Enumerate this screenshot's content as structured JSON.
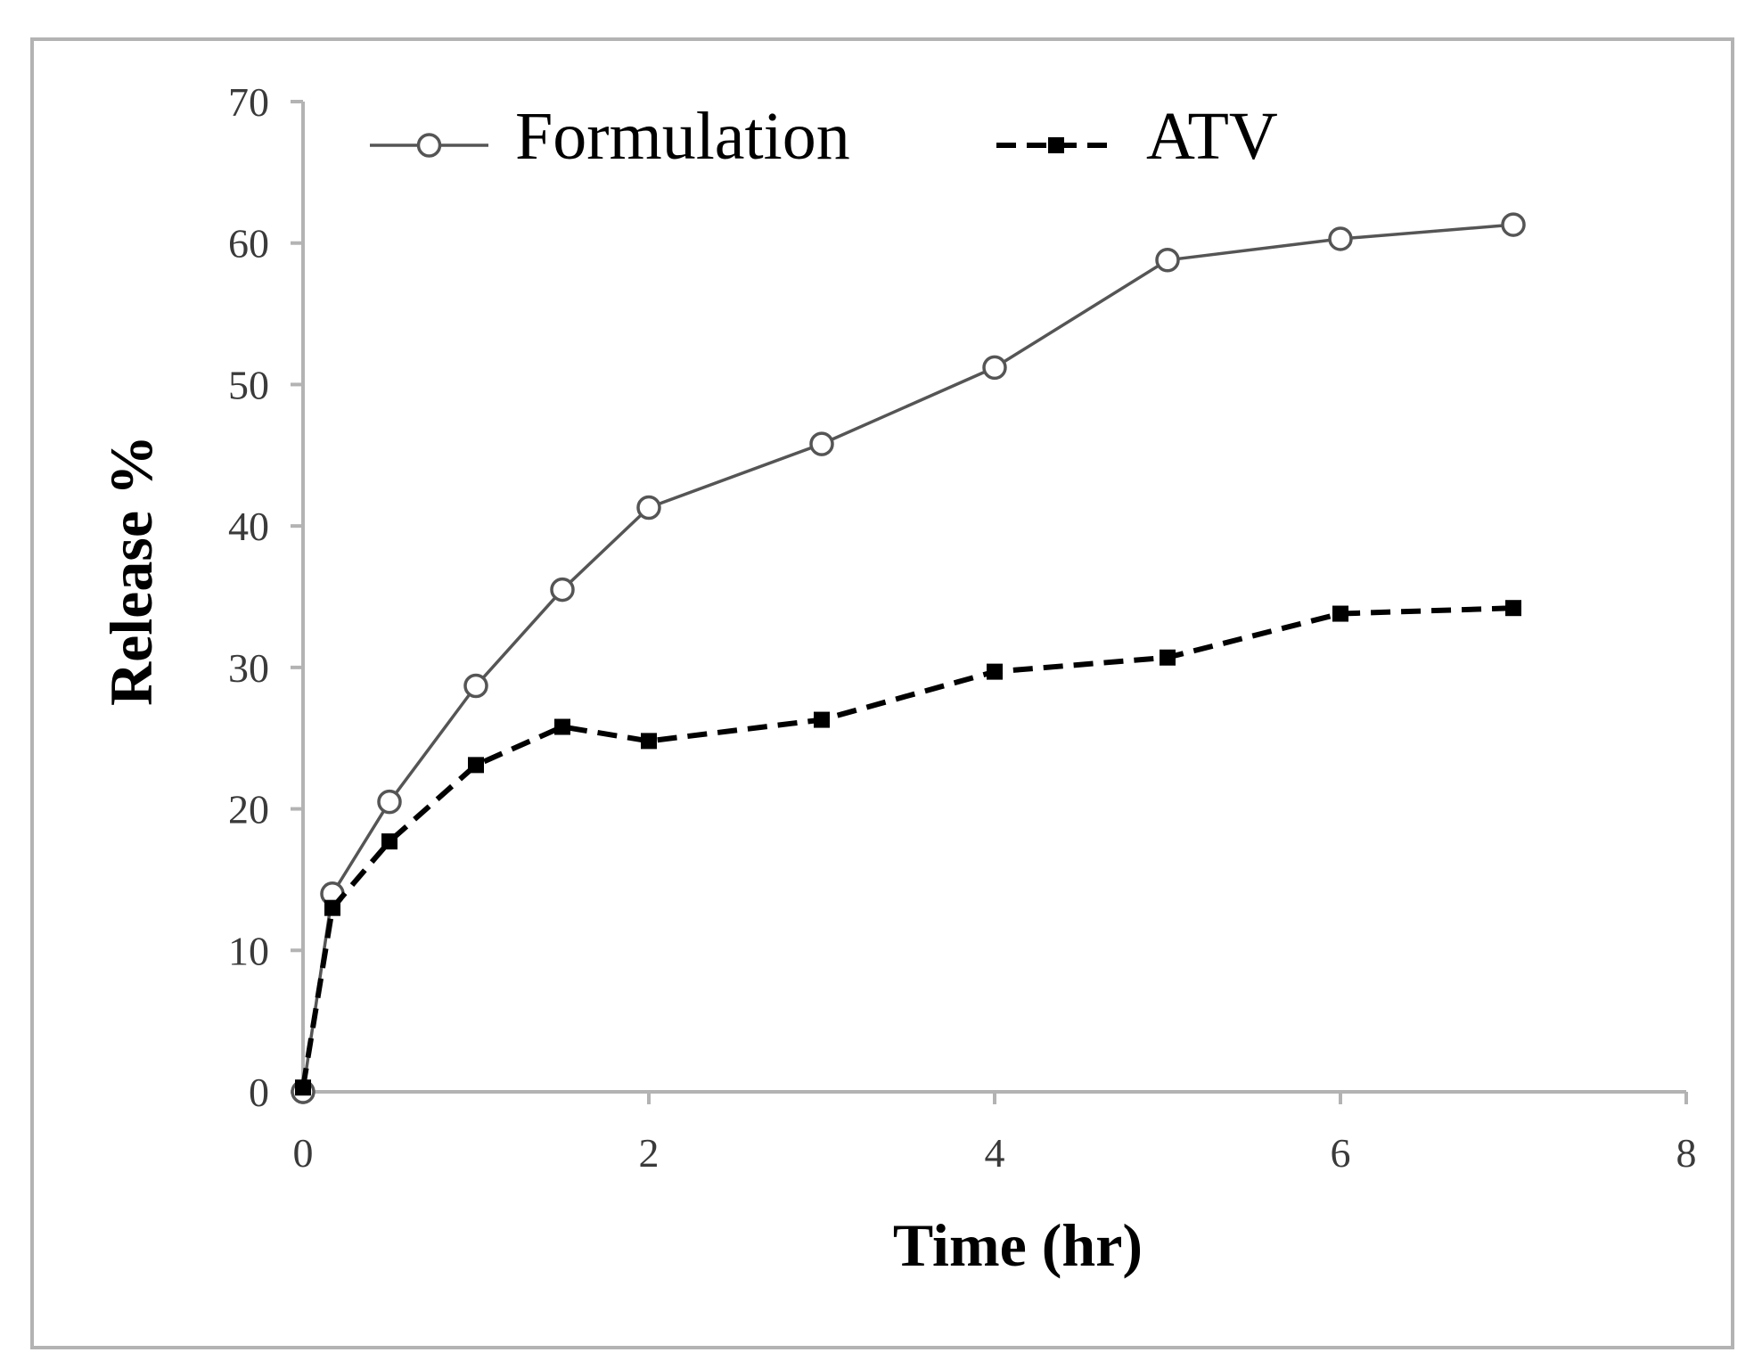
{
  "colors": {
    "frame": "#b3b3b3",
    "axis": "#b3b3b3",
    "formulation_line": "#555555",
    "atv_line": "#000000",
    "tick_text": "#3a3a3a"
  },
  "chart_data": {
    "type": "line",
    "title": "",
    "xlabel": "Time (hr)",
    "ylabel": "Release %",
    "xlim": [
      0,
      8
    ],
    "ylim": [
      0,
      70
    ],
    "xticks": [
      0,
      2,
      4,
      6,
      8
    ],
    "yticks": [
      0,
      10,
      20,
      30,
      40,
      50,
      60,
      70
    ],
    "grid": false,
    "legend_position": "top",
    "series": [
      {
        "name": "Formulation",
        "marker": "open-circle",
        "line_style": "solid",
        "x": [
          0,
          0.17,
          0.5,
          1,
          1.5,
          2,
          3,
          4,
          5,
          6,
          7
        ],
        "y": [
          0,
          14,
          20.5,
          28.7,
          35.5,
          41.3,
          45.8,
          51.2,
          58.8,
          60.3,
          61.3
        ]
      },
      {
        "name": "ATV",
        "marker": "filled-square",
        "line_style": "dashed",
        "x": [
          0,
          0.17,
          0.5,
          1,
          1.5,
          2,
          3,
          4,
          5,
          6,
          7
        ],
        "y": [
          0.3,
          13,
          17.7,
          23.1,
          25.8,
          24.8,
          26.3,
          29.7,
          30.7,
          33.8,
          34.2
        ]
      }
    ]
  }
}
